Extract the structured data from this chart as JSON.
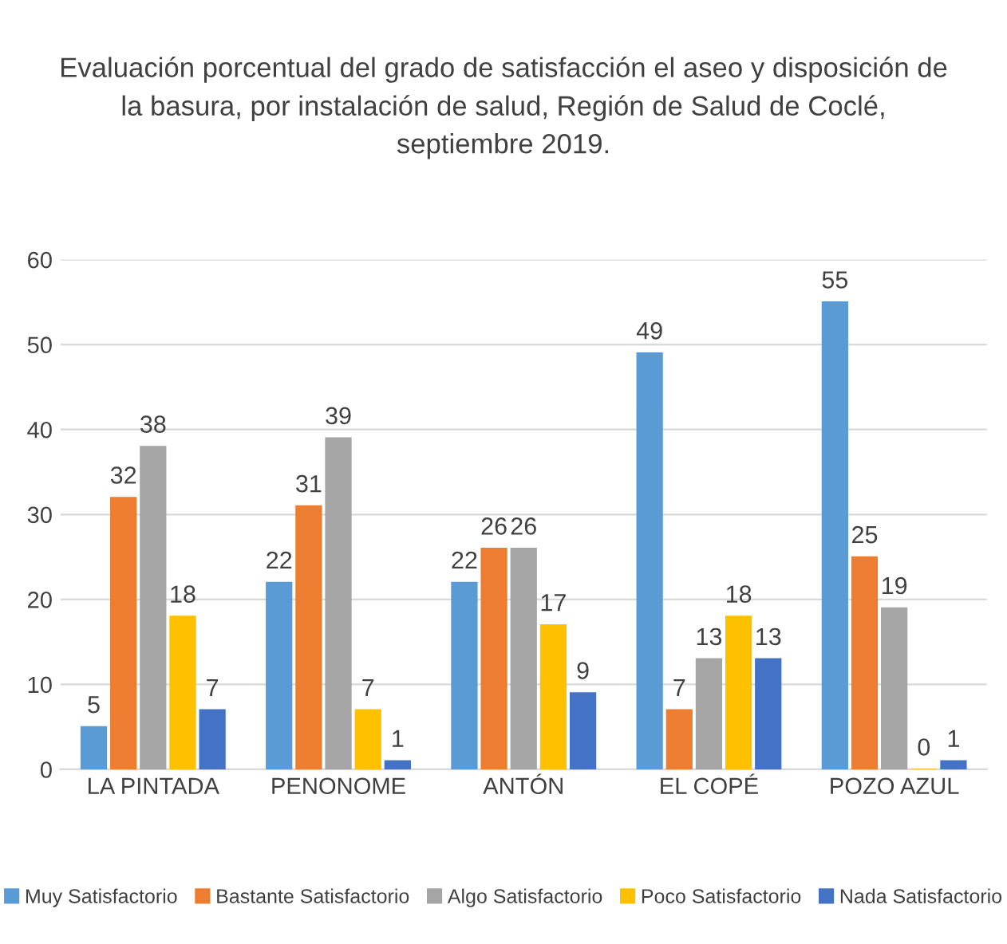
{
  "chart_data": {
    "type": "bar",
    "title": "Evaluación porcentual del grado de satisfacción el aseo y disposición de\nla basura, por instalación de salud, Región de Salud de Coclé,\nseptiembre 2019.",
    "categories": [
      "LA PINTADA",
      "PENONOME",
      "ANTÓN",
      "EL COPÉ",
      "POZO AZUL"
    ],
    "series": [
      {
        "name": "Muy Satisfactorio",
        "color": "#5b9bd5",
        "values": [
          5,
          22,
          22,
          49,
          55
        ]
      },
      {
        "name": "Bastante Satisfactorio",
        "color": "#ed7d31",
        "values": [
          32,
          31,
          26,
          7,
          25
        ]
      },
      {
        "name": "Algo Satisfactorio",
        "color": "#a5a5a5",
        "values": [
          38,
          39,
          26,
          13,
          19
        ]
      },
      {
        "name": "Poco Satisfactorio",
        "color": "#ffc000",
        "values": [
          18,
          7,
          17,
          18,
          0
        ]
      },
      {
        "name": "Nada Satisfactorio",
        "color": "#4472c4",
        "values": [
          7,
          1,
          9,
          13,
          1
        ]
      }
    ],
    "ylim": [
      0,
      60
    ],
    "yticks": [
      0,
      10,
      20,
      30,
      40,
      50,
      60
    ],
    "grid": "y",
    "legend": "bottom",
    "data_labels": true
  }
}
